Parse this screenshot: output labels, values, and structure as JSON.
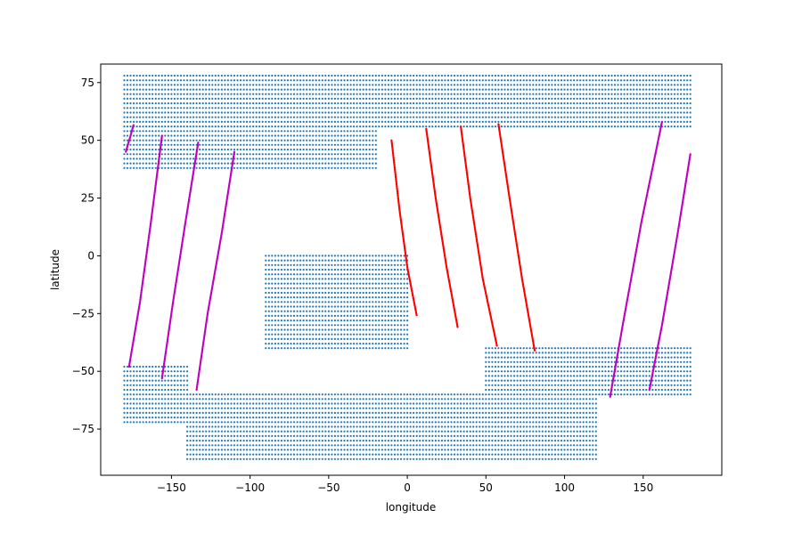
{
  "chart_data": {
    "type": "scatter",
    "title": "",
    "xlabel": "longitude",
    "ylabel": "latitude",
    "xlim": [
      -195,
      200
    ],
    "ylim": [
      -95,
      83
    ],
    "xticks": [
      -150,
      -100,
      -50,
      0,
      50,
      100,
      150
    ],
    "yticks": [
      -75,
      -50,
      -25,
      0,
      25,
      50,
      75
    ],
    "xtick_labels": [
      "−150",
      "−100",
      "−50",
      "0",
      "50",
      "100",
      "150"
    ],
    "ytick_labels": [
      "−75",
      "−50",
      "−25",
      "0",
      "25",
      "50",
      "75"
    ],
    "grid": false,
    "colors": {
      "grid_points": "#1f77b4",
      "tracks_red": "#ff0000",
      "tracks_magenta": "#bf00bf"
    },
    "point_grid": {
      "dlon": 2,
      "dlat": 2,
      "regions": [
        {
          "lat_min": 56,
          "lat_max": 78,
          "lon_min": -180,
          "lon_max": 180
        },
        {
          "lat_min": 38,
          "lat_max": 56,
          "lon_min": -180,
          "lon_max": -20
        },
        {
          "lat_min": -72,
          "lat_max": -48,
          "lon_min": -180,
          "lon_max": -140
        },
        {
          "lat_min": -88,
          "lat_max": -60,
          "lon_min": -140,
          "lon_max": 120
        },
        {
          "lat_min": -40,
          "lat_max": 0,
          "lon_min": -90,
          "lon_max": 0
        },
        {
          "lat_min": -60,
          "lat_max": -40,
          "lon_min": 50,
          "lon_max": 180
        }
      ]
    },
    "series": [
      {
        "color": "red",
        "points": [
          [
            -10,
            50
          ],
          [
            -5,
            20
          ],
          [
            0,
            -5
          ],
          [
            6,
            -26
          ]
        ]
      },
      {
        "color": "red",
        "points": [
          [
            12,
            55
          ],
          [
            18,
            25
          ],
          [
            25,
            -5
          ],
          [
            32,
            -31
          ]
        ]
      },
      {
        "color": "red",
        "points": [
          [
            34,
            56
          ],
          [
            40,
            25
          ],
          [
            48,
            -10
          ],
          [
            57,
            -39
          ]
        ]
      },
      {
        "color": "red",
        "points": [
          [
            58,
            57
          ],
          [
            65,
            25
          ],
          [
            73,
            -10
          ],
          [
            81,
            -41
          ]
        ]
      },
      {
        "color": "magenta",
        "points": [
          [
            -179,
            45
          ],
          [
            -176,
            52
          ],
          [
            -174,
            57
          ]
        ]
      },
      {
        "color": "magenta",
        "points": [
          [
            -177,
            -48
          ],
          [
            -170,
            -20
          ],
          [
            -163,
            15
          ],
          [
            -156,
            52
          ]
        ]
      },
      {
        "color": "magenta",
        "points": [
          [
            -156,
            -53
          ],
          [
            -149,
            -20
          ],
          [
            -141,
            15
          ],
          [
            -133,
            49
          ]
        ]
      },
      {
        "color": "magenta",
        "points": [
          [
            -134,
            -58
          ],
          [
            -127,
            -25
          ],
          [
            -118,
            10
          ],
          [
            -110,
            45
          ]
        ]
      },
      {
        "color": "magenta",
        "points": [
          [
            129,
            -61
          ],
          [
            137,
            -30
          ],
          [
            149,
            15
          ],
          [
            162,
            58
          ]
        ]
      },
      {
        "color": "magenta",
        "points": [
          [
            154,
            -58
          ],
          [
            162,
            -30
          ],
          [
            172,
            10
          ],
          [
            180,
            44
          ]
        ]
      }
    ]
  }
}
